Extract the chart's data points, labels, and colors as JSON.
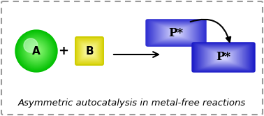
{
  "background_color": "#ffffff",
  "border_color": "#888888",
  "border_linestyle": "--",
  "border_linewidth": 1.5,
  "caption": "Asymmetric autocatalysis in metal-free reactions",
  "caption_fontsize": 9.5,
  "caption_style": "italic",
  "circle_A_label": "A",
  "square_B_label": "B",
  "p_label": "P*",
  "p_label_fontsize": 12,
  "label_fontsize": 11,
  "plus_fontsize": 13
}
